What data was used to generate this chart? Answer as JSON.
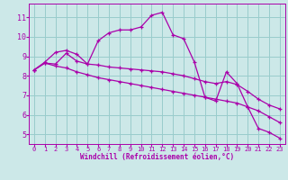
{
  "xlabel": "Windchill (Refroidissement éolien,°C)",
  "bg_color": "#cce8e8",
  "line_color": "#aa00aa",
  "grid_color": "#99cccc",
  "x_data": [
    0,
    1,
    2,
    3,
    4,
    5,
    6,
    7,
    8,
    9,
    10,
    11,
    12,
    13,
    14,
    15,
    16,
    17,
    18,
    19,
    20,
    21,
    22,
    23
  ],
  "line1": [
    8.3,
    8.7,
    9.2,
    9.3,
    9.1,
    8.6,
    9.8,
    10.2,
    10.35,
    10.35,
    10.5,
    11.1,
    11.25,
    10.1,
    9.9,
    8.7,
    6.9,
    6.7,
    8.2,
    7.6,
    6.4,
    5.3,
    5.1,
    4.8
  ],
  "line2": [
    8.3,
    8.65,
    8.6,
    9.15,
    8.75,
    8.6,
    8.55,
    8.45,
    8.4,
    8.35,
    8.3,
    8.25,
    8.2,
    8.1,
    8.0,
    7.85,
    7.7,
    7.6,
    7.7,
    7.55,
    7.2,
    6.8,
    6.5,
    6.3
  ],
  "line3": [
    8.3,
    8.65,
    8.5,
    8.4,
    8.2,
    8.05,
    7.9,
    7.8,
    7.7,
    7.6,
    7.5,
    7.4,
    7.3,
    7.2,
    7.1,
    7.0,
    6.9,
    6.8,
    6.7,
    6.6,
    6.4,
    6.2,
    5.9,
    5.6
  ],
  "yticks": [
    5,
    6,
    7,
    8,
    9,
    10,
    11
  ],
  "ylim": [
    4.5,
    11.7
  ],
  "xlim": [
    -0.5,
    23.5
  ]
}
